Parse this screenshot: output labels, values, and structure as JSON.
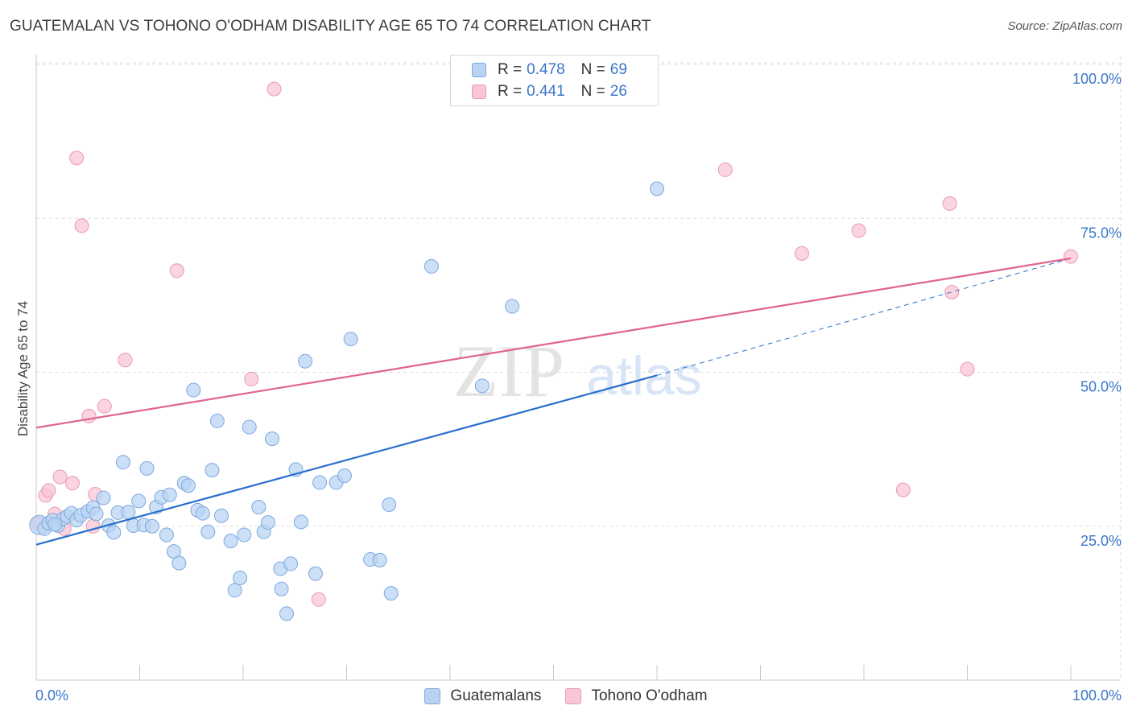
{
  "header": {
    "title": "GUATEMALAN VS TOHONO O'ODHAM DISABILITY AGE 65 TO 74 CORRELATION CHART",
    "source": "Source: ZipAtlas.com"
  },
  "legend": {
    "r_label": "R =",
    "n_label": "N =",
    "series": [
      {
        "name": "Guatemalans",
        "r": "0.478",
        "n": "69"
      },
      {
        "name": "Tohono O'odham",
        "r": "0.441",
        "n": "26"
      }
    ]
  },
  "watermark": {
    "zip": "ZIP",
    "atlas": "atlas"
  },
  "colors": {
    "blue_fill": "#b9d4f3",
    "blue_stroke": "#7ea9df",
    "blue_line": "#2a6fce",
    "pink_fill": "#f8c6d5",
    "pink_stroke": "#ea9ab3",
    "pink_line": "#e0648c",
    "tick_label": "#3a76c9",
    "grid": "#dcdcdc"
  },
  "chart_data": {
    "type": "scatter",
    "title": "GUATEMALAN VS TOHONO O'ODHAM DISABILITY AGE 65 TO 74 CORRELATION CHART",
    "xlabel": "",
    "ylabel": "Disability Age 65 to 74",
    "xlim": [
      0,
      100
    ],
    "ylim": [
      0,
      100
    ],
    "x_tick_labels": [
      "0.0%",
      "100.0%"
    ],
    "y_ticks": [
      25,
      50,
      75,
      100
    ],
    "y_tick_labels": [
      "25.0%",
      "50.0%",
      "75.0%",
      "100.0%"
    ],
    "grid": true,
    "series": [
      {
        "name": "Guatemalans",
        "color": "blue",
        "trendline": {
          "x": [
            0,
            60
          ],
          "y": [
            22.0,
            49.5
          ],
          "dashed_extension": {
            "x": [
              60,
              100
            ],
            "y": [
              49.5,
              68.5
            ]
          }
        },
        "points": [
          {
            "x": 0.3,
            "y": 25.2
          },
          {
            "x": 0.8,
            "y": 24.6
          },
          {
            "x": 1.2,
            "y": 25.5
          },
          {
            "x": 1.6,
            "y": 26.0
          },
          {
            "x": 2.1,
            "y": 25.1
          },
          {
            "x": 2.6,
            "y": 26.2
          },
          {
            "x": 3.0,
            "y": 26.6
          },
          {
            "x": 3.4,
            "y": 27.1
          },
          {
            "x": 3.9,
            "y": 26.0
          },
          {
            "x": 4.3,
            "y": 26.8
          },
          {
            "x": 5.0,
            "y": 27.4
          },
          {
            "x": 5.5,
            "y": 28.0
          },
          {
            "x": 5.8,
            "y": 27.0
          },
          {
            "x": 6.5,
            "y": 29.6
          },
          {
            "x": 7.0,
            "y": 25.1
          },
          {
            "x": 7.5,
            "y": 24.0
          },
          {
            "x": 7.9,
            "y": 27.2
          },
          {
            "x": 8.4,
            "y": 35.4
          },
          {
            "x": 8.9,
            "y": 27.3
          },
          {
            "x": 9.4,
            "y": 25.1
          },
          {
            "x": 9.9,
            "y": 29.1
          },
          {
            "x": 10.4,
            "y": 25.2
          },
          {
            "x": 10.7,
            "y": 34.4
          },
          {
            "x": 11.2,
            "y": 25.0
          },
          {
            "x": 11.6,
            "y": 28.1
          },
          {
            "x": 12.1,
            "y": 29.7
          },
          {
            "x": 12.6,
            "y": 23.6
          },
          {
            "x": 12.9,
            "y": 30.1
          },
          {
            "x": 13.3,
            "y": 20.9
          },
          {
            "x": 13.8,
            "y": 19.0
          },
          {
            "x": 14.3,
            "y": 32.0
          },
          {
            "x": 14.7,
            "y": 31.6
          },
          {
            "x": 15.2,
            "y": 47.1
          },
          {
            "x": 15.6,
            "y": 27.6
          },
          {
            "x": 16.1,
            "y": 27.1
          },
          {
            "x": 16.6,
            "y": 24.1
          },
          {
            "x": 17.0,
            "y": 34.1
          },
          {
            "x": 17.5,
            "y": 42.1
          },
          {
            "x": 17.9,
            "y": 26.7
          },
          {
            "x": 18.8,
            "y": 22.6
          },
          {
            "x": 19.2,
            "y": 14.6
          },
          {
            "x": 19.7,
            "y": 16.6
          },
          {
            "x": 20.1,
            "y": 23.6
          },
          {
            "x": 20.6,
            "y": 41.1
          },
          {
            "x": 21.5,
            "y": 28.1
          },
          {
            "x": 22.0,
            "y": 24.1
          },
          {
            "x": 22.4,
            "y": 25.6
          },
          {
            "x": 22.8,
            "y": 39.2
          },
          {
            "x": 23.6,
            "y": 18.1
          },
          {
            "x": 23.7,
            "y": 14.8
          },
          {
            "x": 24.2,
            "y": 10.8
          },
          {
            "x": 24.6,
            "y": 18.9
          },
          {
            "x": 25.1,
            "y": 34.2
          },
          {
            "x": 25.6,
            "y": 25.7
          },
          {
            "x": 26.0,
            "y": 51.8
          },
          {
            "x": 27.0,
            "y": 17.3
          },
          {
            "x": 27.4,
            "y": 32.1
          },
          {
            "x": 29.0,
            "y": 32.1
          },
          {
            "x": 29.8,
            "y": 33.2
          },
          {
            "x": 30.4,
            "y": 55.4
          },
          {
            "x": 32.3,
            "y": 19.6
          },
          {
            "x": 33.2,
            "y": 19.5
          },
          {
            "x": 34.1,
            "y": 28.5
          },
          {
            "x": 34.3,
            "y": 14.1
          },
          {
            "x": 38.2,
            "y": 67.2
          },
          {
            "x": 43.1,
            "y": 47.8
          },
          {
            "x": 46.0,
            "y": 60.7
          },
          {
            "x": 60.0,
            "y": 79.8
          },
          {
            "x": 1.8,
            "y": 25.3
          }
        ]
      },
      {
        "name": "Tohono O'odham",
        "color": "pink",
        "trendline": {
          "x": [
            0,
            100
          ],
          "y": [
            41.0,
            68.5
          ]
        },
        "points": [
          {
            "x": 0.2,
            "y": 25.4
          },
          {
            "x": 0.9,
            "y": 30.0
          },
          {
            "x": 1.2,
            "y": 30.8
          },
          {
            "x": 1.8,
            "y": 27.0
          },
          {
            "x": 2.3,
            "y": 33.0
          },
          {
            "x": 2.7,
            "y": 24.6
          },
          {
            "x": 3.5,
            "y": 32.0
          },
          {
            "x": 3.9,
            "y": 84.8
          },
          {
            "x": 4.4,
            "y": 73.8
          },
          {
            "x": 5.1,
            "y": 42.9
          },
          {
            "x": 5.5,
            "y": 25.0
          },
          {
            "x": 5.7,
            "y": 30.2
          },
          {
            "x": 6.6,
            "y": 44.5
          },
          {
            "x": 8.6,
            "y": 52.0
          },
          {
            "x": 13.6,
            "y": 66.5
          },
          {
            "x": 20.8,
            "y": 48.9
          },
          {
            "x": 23.0,
            "y": 96.0
          },
          {
            "x": 27.3,
            "y": 13.1
          },
          {
            "x": 66.6,
            "y": 82.9
          },
          {
            "x": 74.0,
            "y": 69.3
          },
          {
            "x": 79.5,
            "y": 73.0
          },
          {
            "x": 83.8,
            "y": 30.9
          },
          {
            "x": 88.3,
            "y": 77.4
          },
          {
            "x": 88.5,
            "y": 63.0
          },
          {
            "x": 90.0,
            "y": 50.5
          },
          {
            "x": 100.0,
            "y": 68.8
          }
        ]
      }
    ]
  }
}
